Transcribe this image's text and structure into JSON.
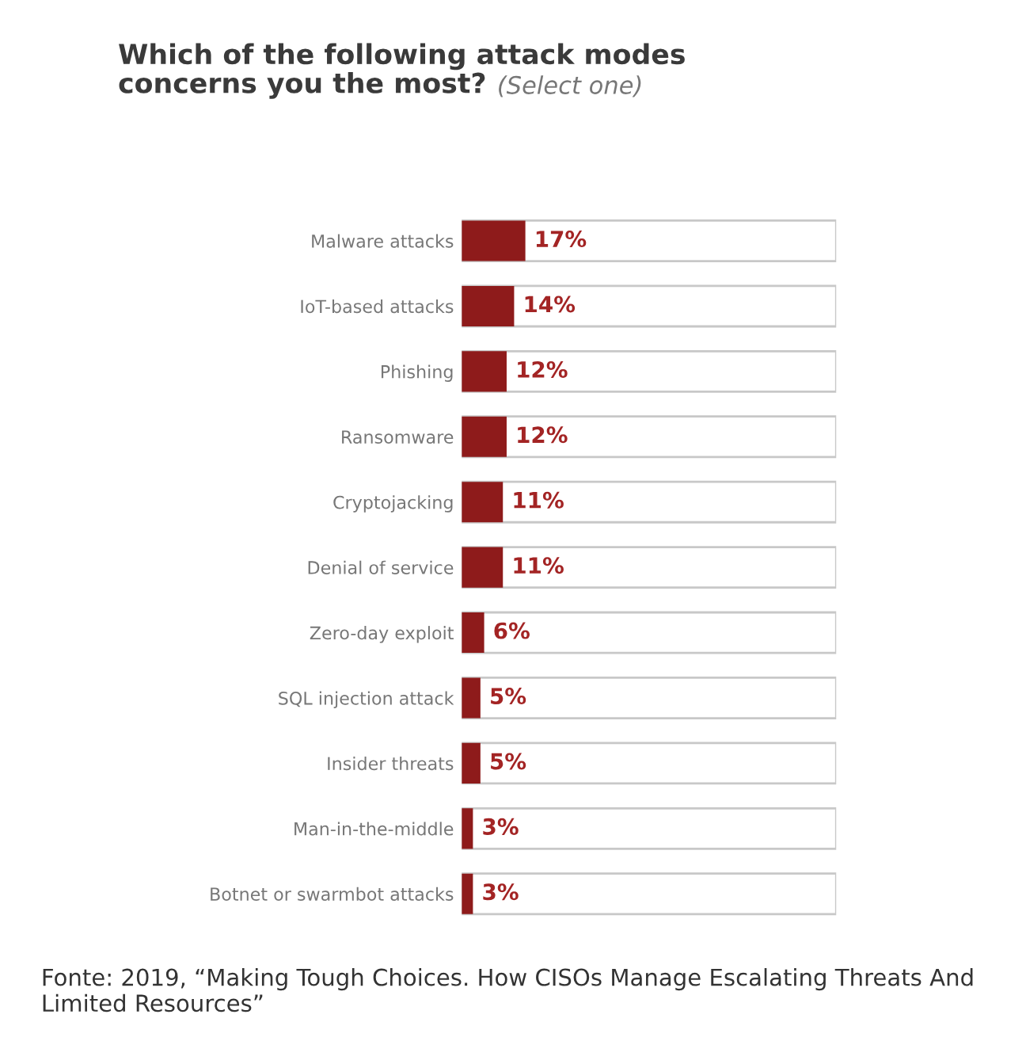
{
  "chart_data": {
    "type": "bar",
    "orientation": "horizontal",
    "title": "Which of the following attack modes\nconcerns you the most?",
    "subtitle": "(Select one)",
    "categories": [
      "Malware attacks",
      "IoT-based attacks",
      "Phishing",
      "Ransomware",
      "Cryptojacking",
      "Denial of service",
      "Zero-day exploit",
      "SQL injection attack",
      "Insider threats",
      "Man-in-the-middle",
      "Botnet or swarmbot attacks"
    ],
    "values": [
      17,
      14,
      12,
      12,
      11,
      11,
      6,
      5,
      5,
      3,
      3
    ],
    "value_labels": [
      "17%",
      "14%",
      "12%",
      "12%",
      "11%",
      "11%",
      "6%",
      "5%",
      "5%",
      "3%",
      "3%"
    ],
    "color": "#8e1b1b",
    "xlim": [
      0,
      100
    ],
    "tick_labels": "y",
    "grid": false,
    "annotations": [
      "Fonte: 2019, “Making Tough Choices. How CISOs Manage Escalating Threats And Limited Resources”"
    ]
  }
}
